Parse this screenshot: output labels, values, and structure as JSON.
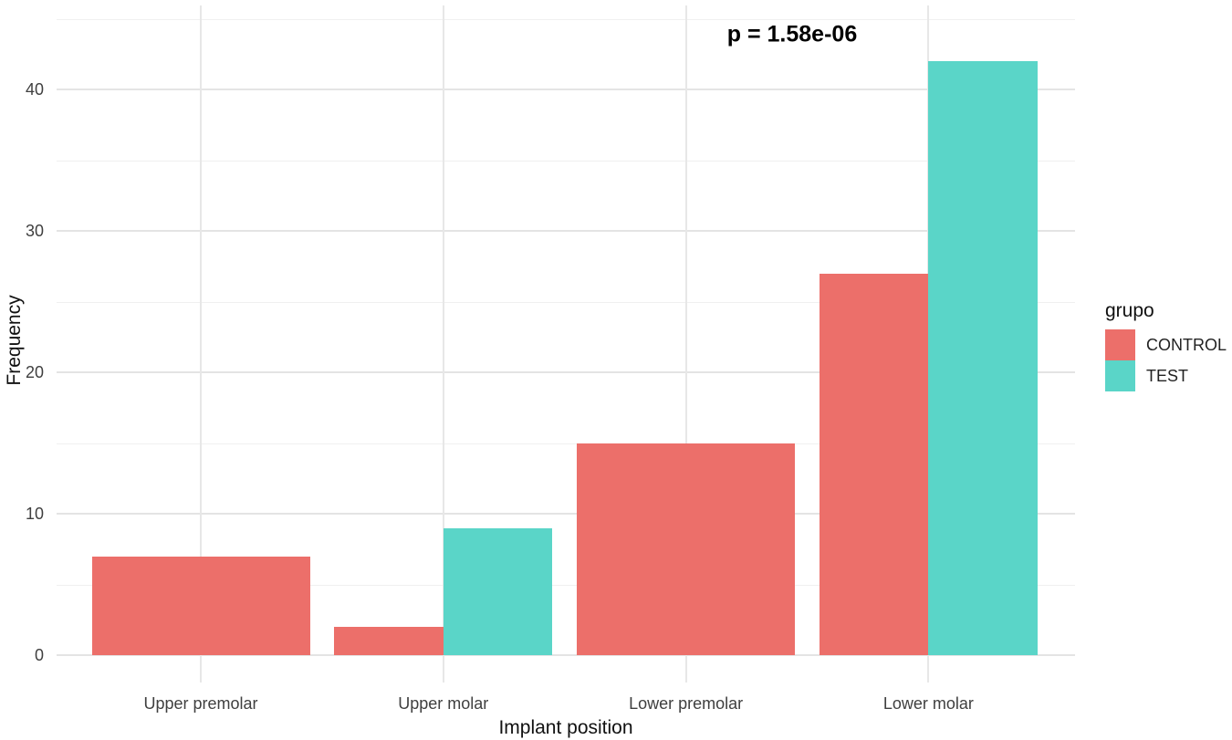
{
  "chart_data": {
    "type": "bar",
    "grouping": "dodge",
    "title": "",
    "xlabel": "Implant position",
    "ylabel": "Frequency",
    "categories": [
      "Upper premolar",
      "Upper molar",
      "Lower premolar",
      "Lower molar"
    ],
    "series": [
      {
        "name": "CONTROL",
        "color": "#EC6F6A",
        "values": [
          7,
          2,
          15,
          27
        ]
      },
      {
        "name": "TEST",
        "color": "#5AD5C8",
        "values": [
          null,
          9,
          null,
          42
        ]
      }
    ],
    "ylim": [
      0,
      46
    ],
    "yticks": [
      0,
      10,
      20,
      30,
      40
    ],
    "yminor": [
      5,
      15,
      25,
      35,
      45
    ],
    "grid": "on",
    "panel_background": "#ffffff",
    "legend": {
      "title": "grupo",
      "position": "right"
    },
    "annotation": {
      "text": "p = 1.58e-06"
    }
  }
}
